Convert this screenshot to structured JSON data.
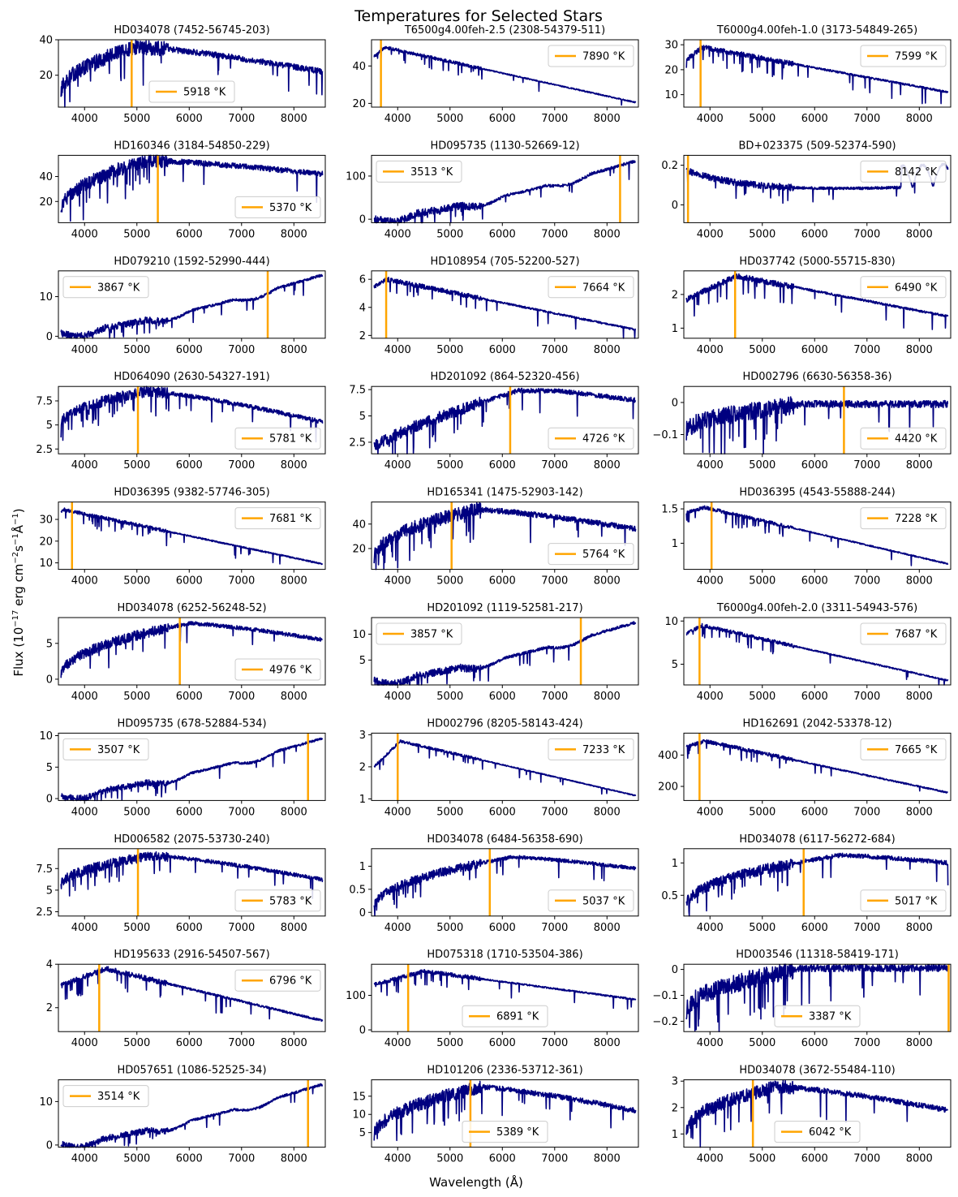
{
  "figure": {
    "title": "Temperatures for Selected Stars",
    "xlabel": "Wavelength (Å)",
    "ylabel_text": "Flux (10−17 erg cm−2s−1Å−1)",
    "ylabel_parts": [
      "Flux (10",
      "−17",
      " erg cm",
      "−2",
      "s",
      "−1",
      "Å",
      "−1",
      ")"
    ]
  },
  "colors": {
    "spectrum": "#000080",
    "marker": "#FFA500",
    "axis": "#000000"
  },
  "chart_data": [
    {
      "type": "line",
      "title": "HD034078 (7452-56745-203)",
      "profile": "cool",
      "xlim": [
        3500,
        8600
      ],
      "ylim": [
        2,
        40
      ],
      "yticks": [
        20,
        40
      ],
      "xticks": [
        4000,
        5000,
        6000,
        7000,
        8000
      ],
      "start": 10,
      "peak": 36,
      "peak_x": 5000,
      "end": 22,
      "noise": 3,
      "line_x": 4900,
      "legend": "5918 °K",
      "legend_pos": "lower center"
    },
    {
      "type": "line",
      "title": "T6500g4.00feh-2.5 (2308-54379-511)",
      "profile": "hot",
      "xlim": [
        3500,
        8600
      ],
      "ylim": [
        18,
        54
      ],
      "yticks": [
        20,
        40
      ],
      "xticks": [
        4000,
        5000,
        6000,
        7000,
        8000
      ],
      "start": 45,
      "peak": 50,
      "peak_x": 3750,
      "end": 20.5,
      "noise": 1,
      "line_x": 3680,
      "legend": "7890 °K",
      "legend_pos": "upper right"
    },
    {
      "type": "line",
      "title": "T6000g4.00feh-1.0 (3173-54849-265)",
      "profile": "hot",
      "xlim": [
        3500,
        8600
      ],
      "ylim": [
        5,
        32
      ],
      "yticks": [
        10,
        20,
        30
      ],
      "xticks": [
        4000,
        5000,
        6000,
        7000,
        8000
      ],
      "start": 24,
      "peak": 29,
      "peak_x": 3850,
      "end": 11,
      "noise": 1.2,
      "line_x": 3820,
      "legend": "7599 °K",
      "legend_pos": "upper right"
    },
    {
      "type": "line",
      "title": "HD160346 (3184-54850-229)",
      "profile": "cool",
      "xlim": [
        3500,
        8600
      ],
      "ylim": [
        3,
        57
      ],
      "yticks": [
        20,
        40
      ],
      "xticks": [
        4000,
        5000,
        6000,
        7000,
        8000
      ],
      "start": 12,
      "peak": 53,
      "peak_x": 5200,
      "end": 42,
      "noise": 4,
      "line_x": 5400,
      "legend": "5370 °K",
      "legend_pos": "lower right"
    },
    {
      "type": "line",
      "title": "HD095735 (1130-52669-12)",
      "profile": "mdwarf",
      "xlim": [
        3500,
        8600
      ],
      "ylim": [
        -8,
        148
      ],
      "yticks": [
        0,
        100
      ],
      "xticks": [
        4000,
        5000,
        6000,
        7000,
        8000
      ],
      "start": 2,
      "peak": 135,
      "peak_x": 8500,
      "end": 135,
      "noise": 6,
      "line_x": 8250,
      "legend": "3513 °K",
      "legend_pos": "upper left"
    },
    {
      "type": "line",
      "title": "BD+023375 (509-52374-590)",
      "profile": "bd",
      "xlim": [
        3500,
        8600
      ],
      "ylim": [
        -0.09,
        0.25
      ],
      "yticks": [
        0.0,
        0.2
      ],
      "xticks": [
        4000,
        5000,
        6000,
        7000,
        8000
      ],
      "start": 0.17,
      "peak": 0.17,
      "peak_x": 3600,
      "end": 0.1,
      "noise": 0.012,
      "line_x": 3580,
      "legend": "8142 °K",
      "legend_pos": "upper right"
    },
    {
      "type": "line",
      "title": "HD079210 (1592-52990-444)",
      "profile": "mdwarf",
      "xlim": [
        3500,
        8600
      ],
      "ylim": [
        -0.5,
        16.5
      ],
      "yticks": [
        0,
        10
      ],
      "xticks": [
        4000,
        5000,
        6000,
        7000,
        8000
      ],
      "start": 0.8,
      "peak": 15.5,
      "peak_x": 7600,
      "end": 15,
      "noise": 0.6,
      "line_x": 7500,
      "legend": "3867 °K",
      "legend_pos": "upper left"
    },
    {
      "type": "line",
      "title": "HD108954 (705-52200-527)",
      "profile": "hot",
      "xlim": [
        3500,
        8600
      ],
      "ylim": [
        1.8,
        6.6
      ],
      "yticks": [
        2,
        4,
        6
      ],
      "xticks": [
        4000,
        5000,
        6000,
        7000,
        8000
      ],
      "start": 5.5,
      "peak": 6,
      "peak_x": 3800,
      "end": 2.4,
      "noise": 0.2,
      "line_x": 3780,
      "legend": "7664 °K",
      "legend_pos": "upper right"
    },
    {
      "type": "line",
      "title": "HD037742 (5000-55715-830)",
      "profile": "hot",
      "xlim": [
        3500,
        8600
      ],
      "ylim": [
        0.7,
        2.7
      ],
      "yticks": [
        1,
        2
      ],
      "xticks": [
        4000,
        5000,
        6000,
        7000,
        8000
      ],
      "start": 1.85,
      "peak": 2.55,
      "peak_x": 4500,
      "end": 1.35,
      "noise": 0.1,
      "line_x": 4480,
      "legend": "6490 °K",
      "legend_pos": "upper right"
    },
    {
      "type": "line",
      "title": "HD064090 (2630-54327-191)",
      "profile": "cool",
      "xlim": [
        3500,
        8600
      ],
      "ylim": [
        2,
        9
      ],
      "yticks": [
        2.5,
        5.0,
        7.5
      ],
      "xticks": [
        4000,
        5000,
        6000,
        7000,
        8000
      ],
      "start": 5,
      "peak": 8.5,
      "peak_x": 5200,
      "end": 5.3,
      "noise": 0.4,
      "line_x": 5020,
      "legend": "5781 °K",
      "legend_pos": "lower right"
    },
    {
      "type": "line",
      "title": "HD201092 (864-52320-456)",
      "profile": "kcool",
      "xlim": [
        3500,
        8600
      ],
      "ylim": [
        1.4,
        7.8
      ],
      "yticks": [
        2.5,
        5.0,
        7.5
      ],
      "xticks": [
        4000,
        5000,
        6000,
        7000,
        8000
      ],
      "start": 2,
      "peak": 7.4,
      "peak_x": 6200,
      "end": 6.5,
      "noise": 0.4,
      "line_x": 6150,
      "legend": "4726 °K",
      "legend_pos": "lower right"
    },
    {
      "type": "line",
      "title": "HD002796 (6630-56358-36)",
      "profile": "neg",
      "xlim": [
        3500,
        8600
      ],
      "ylim": [
        -0.16,
        0.05
      ],
      "yticks": [
        -0.1,
        0.0
      ],
      "xticks": [
        4000,
        5000,
        6000,
        7000,
        8000
      ],
      "start": -0.09,
      "peak": -0.005,
      "peak_x": 8500,
      "end": -0.005,
      "noise": 0.02,
      "line_x": 6560,
      "legend": "4420 °K",
      "legend_pos": "lower right"
    },
    {
      "type": "line",
      "title": "HD036395 (9382-57746-305)",
      "profile": "hot",
      "xlim": [
        3500,
        8600
      ],
      "ylim": [
        7,
        38
      ],
      "yticks": [
        10,
        20,
        30
      ],
      "xticks": [
        4000,
        5000,
        6000,
        7000,
        8000
      ],
      "start": 34,
      "peak": 34.5,
      "peak_x": 3600,
      "end": 9.5,
      "noise": 1,
      "line_x": 3760,
      "legend": "7681 °K",
      "legend_pos": "upper right"
    },
    {
      "type": "line",
      "title": "HD165341 (1475-52903-142)",
      "profile": "cool",
      "xlim": [
        3500,
        8600
      ],
      "ylim": [
        3,
        58
      ],
      "yticks": [
        20,
        40
      ],
      "xticks": [
        4000,
        5000,
        6000,
        7000,
        8000
      ],
      "start": 12,
      "peak": 52,
      "peak_x": 5500,
      "end": 36,
      "noise": 4,
      "line_x": 5030,
      "legend": "5764 °K",
      "legend_pos": "lower right"
    },
    {
      "type": "line",
      "title": "HD036395 (4543-55888-244)",
      "profile": "hot",
      "xlim": [
        3500,
        8600
      ],
      "ylim": [
        0.62,
        1.6
      ],
      "yticks": [
        1.0,
        1.5
      ],
      "xticks": [
        4000,
        5000,
        6000,
        7000,
        8000
      ],
      "start": 1.45,
      "peak": 1.52,
      "peak_x": 3900,
      "end": 0.7,
      "noise": 0.03,
      "line_x": 4030,
      "legend": "7228 °K",
      "legend_pos": "upper right"
    },
    {
      "type": "line",
      "title": "HD034078 (6252-56248-52)",
      "profile": "cool",
      "xlim": [
        3500,
        8600
      ],
      "ylim": [
        -0.8,
        8.6
      ],
      "yticks": [
        0,
        5
      ],
      "xticks": [
        4000,
        5000,
        6000,
        7000,
        8000
      ],
      "start": 0.5,
      "peak": 7.8,
      "peak_x": 6000,
      "end": 5.5,
      "noise": 0.5,
      "line_x": 5820,
      "legend": "4976 °K",
      "legend_pos": "lower right"
    },
    {
      "type": "line",
      "title": "HD201092 (1119-52581-217)",
      "profile": "mdwarf",
      "xlim": [
        3500,
        8600
      ],
      "ylim": [
        0.2,
        13.2
      ],
      "yticks": [
        5,
        10
      ],
      "xticks": [
        4000,
        5000,
        6000,
        7000,
        8000
      ],
      "start": 1,
      "peak": 12.3,
      "peak_x": 7500,
      "end": 12,
      "noise": 0.5,
      "line_x": 7500,
      "legend": "3857 °K",
      "legend_pos": "upper left"
    },
    {
      "type": "line",
      "title": "T6000g4.00feh-2.0 (3311-54943-576)",
      "profile": "hot",
      "xlim": [
        3500,
        8600
      ],
      "ylim": [
        2.6,
        10.4
      ],
      "yticks": [
        5,
        10
      ],
      "xticks": [
        4000,
        5000,
        6000,
        7000,
        8000
      ],
      "start": 8.5,
      "peak": 9.5,
      "peak_x": 3850,
      "end": 3.1,
      "noise": 0.25,
      "line_x": 3800,
      "legend": "7687 °K",
      "legend_pos": "upper right"
    },
    {
      "type": "line",
      "title": "HD095735 (678-52884-534)",
      "profile": "mdwarf",
      "xlim": [
        3500,
        8600
      ],
      "ylim": [
        -0.3,
        10.4
      ],
      "yticks": [
        0,
        5,
        10
      ],
      "xticks": [
        4000,
        5000,
        6000,
        7000,
        8000
      ],
      "start": 0.5,
      "peak": 9.6,
      "peak_x": 8500,
      "end": 9.6,
      "noise": 0.35,
      "line_x": 8270,
      "legend": "3507 °K",
      "legend_pos": "upper left"
    },
    {
      "type": "line",
      "title": "HD002796 (8205-58143-424)",
      "profile": "hot",
      "xlim": [
        3500,
        8600
      ],
      "ylim": [
        0.95,
        3.05
      ],
      "yticks": [
        1,
        2,
        3
      ],
      "xticks": [
        4000,
        5000,
        6000,
        7000,
        8000
      ],
      "start": 2,
      "peak": 2.8,
      "peak_x": 4050,
      "end": 1.1,
      "noise": 0.05,
      "line_x": 4000,
      "legend": "7233 °K",
      "legend_pos": "upper right"
    },
    {
      "type": "line",
      "title": "HD162691 (2042-53378-12)",
      "profile": "hot",
      "xlim": [
        3500,
        8600
      ],
      "ylim": [
        110,
        540
      ],
      "yticks": [
        200,
        400
      ],
      "xticks": [
        4000,
        5000,
        6000,
        7000,
        8000
      ],
      "start": 450,
      "peak": 490,
      "peak_x": 3900,
      "end": 160,
      "noise": 14,
      "line_x": 3800,
      "legend": "7665 °K",
      "legend_pos": "upper right"
    },
    {
      "type": "line",
      "title": "HD006582 (2075-53730-240)",
      "profile": "cool",
      "xlim": [
        3500,
        8600
      ],
      "ylim": [
        2,
        9.8
      ],
      "yticks": [
        2.5,
        5.0,
        7.5
      ],
      "xticks": [
        4000,
        5000,
        6000,
        7000,
        8000
      ],
      "start": 5.5,
      "peak": 9,
      "peak_x": 5300,
      "end": 6.2,
      "noise": 0.4,
      "line_x": 5020,
      "legend": "5783 °K",
      "legend_pos": "lower right"
    },
    {
      "type": "line",
      "title": "HD034078 (6484-56358-690)",
      "profile": "cool",
      "xlim": [
        3500,
        8600
      ],
      "ylim": [
        -0.08,
        1.38
      ],
      "yticks": [
        0.0,
        0.5,
        1.0
      ],
      "xticks": [
        4000,
        5000,
        6000,
        7000,
        8000
      ],
      "start": 0.1,
      "peak": 1.2,
      "peak_x": 6200,
      "end": 0.95,
      "noise": 0.07,
      "line_x": 5760,
      "legend": "5037 °K",
      "legend_pos": "lower right"
    },
    {
      "type": "line",
      "title": "HD034078 (6117-56272-684)",
      "profile": "cool",
      "xlim": [
        3500,
        8600
      ],
      "ylim": [
        0.18,
        1.22
      ],
      "yticks": [
        0.5,
        1.0
      ],
      "xticks": [
        4000,
        5000,
        6000,
        7000,
        8000
      ],
      "start": 0.35,
      "peak": 1.12,
      "peak_x": 6500,
      "end": 1.0,
      "noise": 0.06,
      "line_x": 5790,
      "legend": "5017 °K",
      "legend_pos": "lower right"
    },
    {
      "type": "line",
      "title": "HD195633 (2916-54507-567)",
      "profile": "hot",
      "xlim": [
        3500,
        8600
      ],
      "ylim": [
        0.9,
        4
      ],
      "yticks": [
        2,
        4
      ],
      "xticks": [
        4000,
        5000,
        6000,
        7000,
        8000
      ],
      "start": 3,
      "peak": 3.8,
      "peak_x": 4400,
      "end": 1.4,
      "noise": 0.15,
      "line_x": 4280,
      "legend": "6796 °K",
      "legend_pos": "upper right"
    },
    {
      "type": "line",
      "title": "HD075318 (1710-53504-386)",
      "profile": "hot",
      "xlim": [
        3500,
        8600
      ],
      "ylim": [
        -5,
        190
      ],
      "yticks": [
        0,
        100
      ],
      "xticks": [
        4000,
        5000,
        6000,
        7000,
        8000
      ],
      "start": 130,
      "peak": 170,
      "peak_x": 4500,
      "end": 88,
      "noise": 7,
      "line_x": 4200,
      "legend": "6891 °K",
      "legend_pos": "lower center"
    },
    {
      "type": "line",
      "title": "HD003546 (11318-58419-171)",
      "profile": "neg",
      "xlim": [
        3500,
        8600
      ],
      "ylim": [
        -0.24,
        0.02
      ],
      "yticks": [
        -0.2,
        -0.1,
        0.0
      ],
      "xticks": [
        4000,
        5000,
        6000,
        7000,
        8000
      ],
      "start": -0.16,
      "peak": 0.005,
      "peak_x": 8500,
      "end": 0.005,
      "noise": 0.025,
      "line_x": 8560,
      "legend": "3387 °K",
      "legend_pos": "lower center"
    },
    {
      "type": "line",
      "title": "HD057651 (1086-52525-34)",
      "profile": "mdwarf",
      "xlim": [
        3500,
        8600
      ],
      "ylim": [
        -0.5,
        15
      ],
      "yticks": [
        0,
        10
      ],
      "xticks": [
        4000,
        5000,
        6000,
        7000,
        8000
      ],
      "start": 0.3,
      "peak": 14,
      "peak_x": 8500,
      "end": 14,
      "noise": 0.5,
      "line_x": 8270,
      "legend": "3514 °K",
      "legend_pos": "upper left"
    },
    {
      "type": "line",
      "title": "HD101206 (2336-53712-361)",
      "profile": "cool",
      "xlim": [
        3500,
        8600
      ],
      "ylim": [
        1,
        19.5
      ],
      "yticks": [
        5,
        10,
        15
      ],
      "xticks": [
        4000,
        5000,
        6000,
        7000,
        8000
      ],
      "start": 4,
      "peak": 17.5,
      "peak_x": 5600,
      "end": 11,
      "noise": 1.3,
      "line_x": 5390,
      "legend": "5389 °K",
      "legend_pos": "lower center"
    },
    {
      "type": "line",
      "title": "HD034078 (3672-55484-110)",
      "profile": "cool",
      "xlim": [
        3500,
        8600
      ],
      "ylim": [
        0.5,
        3.05
      ],
      "yticks": [
        1,
        2,
        3
      ],
      "xticks": [
        4000,
        5000,
        6000,
        7000,
        8000
      ],
      "start": 1.1,
      "peak": 2.8,
      "peak_x": 5300,
      "end": 1.9,
      "noise": 0.18,
      "line_x": 4820,
      "legend": "6042 °K",
      "legend_pos": "lower center"
    }
  ]
}
